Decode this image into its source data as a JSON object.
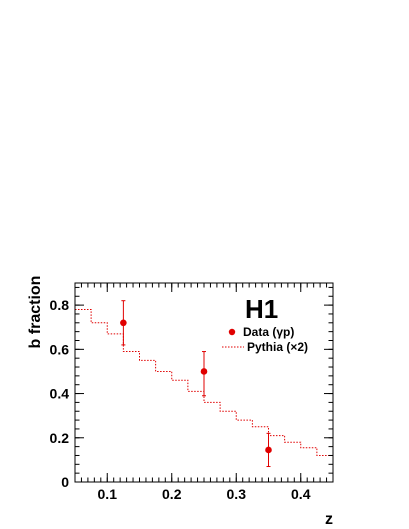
{
  "chart_data": {
    "type": "scatter",
    "xlabel": "z",
    "ylabel": "b fraction",
    "xlim": [
      0.05,
      0.45
    ],
    "ylim": [
      0,
      0.9
    ],
    "x_ticks": [
      0.1,
      0.2,
      0.3,
      0.4
    ],
    "x_tick_labels": [
      "0.1",
      "0.2",
      "0.3",
      "0.4"
    ],
    "y_ticks": [
      0,
      0.2,
      0.4,
      0.6,
      0.8
    ],
    "y_tick_labels": [
      "0",
      "0.2",
      "0.4",
      "0.6",
      "0.8"
    ],
    "logo": "H1",
    "legend_position": "top-right",
    "series": [
      {
        "name": "Data (γp)",
        "kind": "points-with-errors",
        "color": "#e00000",
        "points": [
          {
            "x": 0.125,
            "y": 0.72,
            "y_low": 0.62,
            "y_high": 0.82
          },
          {
            "x": 0.25,
            "y": 0.5,
            "y_low": 0.39,
            "y_high": 0.59
          },
          {
            "x": 0.35,
            "y": 0.145,
            "y_low": 0.07,
            "y_high": 0.22
          }
        ]
      },
      {
        "name": "Pythia (×2)",
        "kind": "step-histogram",
        "color": "#e00000",
        "bin_edges": [
          0.05,
          0.075,
          0.1,
          0.125,
          0.15,
          0.175,
          0.2,
          0.225,
          0.25,
          0.275,
          0.3,
          0.325,
          0.35,
          0.375,
          0.4,
          0.425,
          0.45
        ],
        "values": [
          0.78,
          0.72,
          0.67,
          0.59,
          0.55,
          0.5,
          0.46,
          0.41,
          0.36,
          0.32,
          0.28,
          0.25,
          0.21,
          0.18,
          0.155,
          0.12
        ]
      }
    ]
  }
}
